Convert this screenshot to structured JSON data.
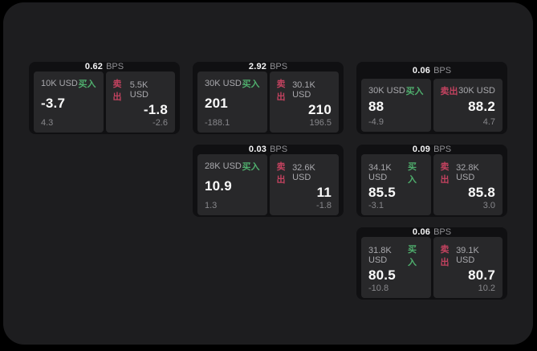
{
  "labels": {
    "bps_unit": "BPS",
    "buy": "买入",
    "sell": "卖出"
  },
  "colors": {
    "buy_green": "#4fae6d",
    "sell_red": "#c2425f",
    "window_bg": "#1d1d1f",
    "card_bg": "#101012",
    "panel_bg": "#28282a"
  },
  "cards": [
    {
      "row": 1,
      "col": 1,
      "bps": "0.62",
      "buy": {
        "amount": "10K USD",
        "price": "-3.7",
        "delta": "4.3"
      },
      "sell": {
        "amount": "5.5K USD",
        "price": "-1.8",
        "delta": "-2.6"
      }
    },
    {
      "row": 1,
      "col": 2,
      "bps": "2.92",
      "buy": {
        "amount": "30K USD",
        "price": "201",
        "delta": "-188.1"
      },
      "sell": {
        "amount": "30.1K USD",
        "price": "210",
        "delta": "196.5"
      }
    },
    {
      "row": 1,
      "col": 3,
      "bps": "0.06",
      "buy": {
        "amount": "30K USD",
        "price": "88",
        "delta": "-4.9"
      },
      "sell": {
        "amount": "30K USD",
        "price": "88.2",
        "delta": "4.7"
      }
    },
    {
      "row": 2,
      "col": 2,
      "bps": "0.03",
      "buy": {
        "amount": "28K USD",
        "price": "10.9",
        "delta": "1.3"
      },
      "sell": {
        "amount": "32.6K USD",
        "price": "11",
        "delta": "-1.8"
      }
    },
    {
      "row": 2,
      "col": 3,
      "bps": "0.09",
      "buy": {
        "amount": "34.1K USD",
        "price": "85.5",
        "delta": "-3.1"
      },
      "sell": {
        "amount": "32.8K USD",
        "price": "85.8",
        "delta": "3.0"
      }
    },
    {
      "row": 3,
      "col": 3,
      "bps": "0.06",
      "buy": {
        "amount": "31.8K USD",
        "price": "80.5",
        "delta": "-10.8"
      },
      "sell": {
        "amount": "39.1K USD",
        "price": "80.7",
        "delta": "10.2"
      }
    }
  ]
}
